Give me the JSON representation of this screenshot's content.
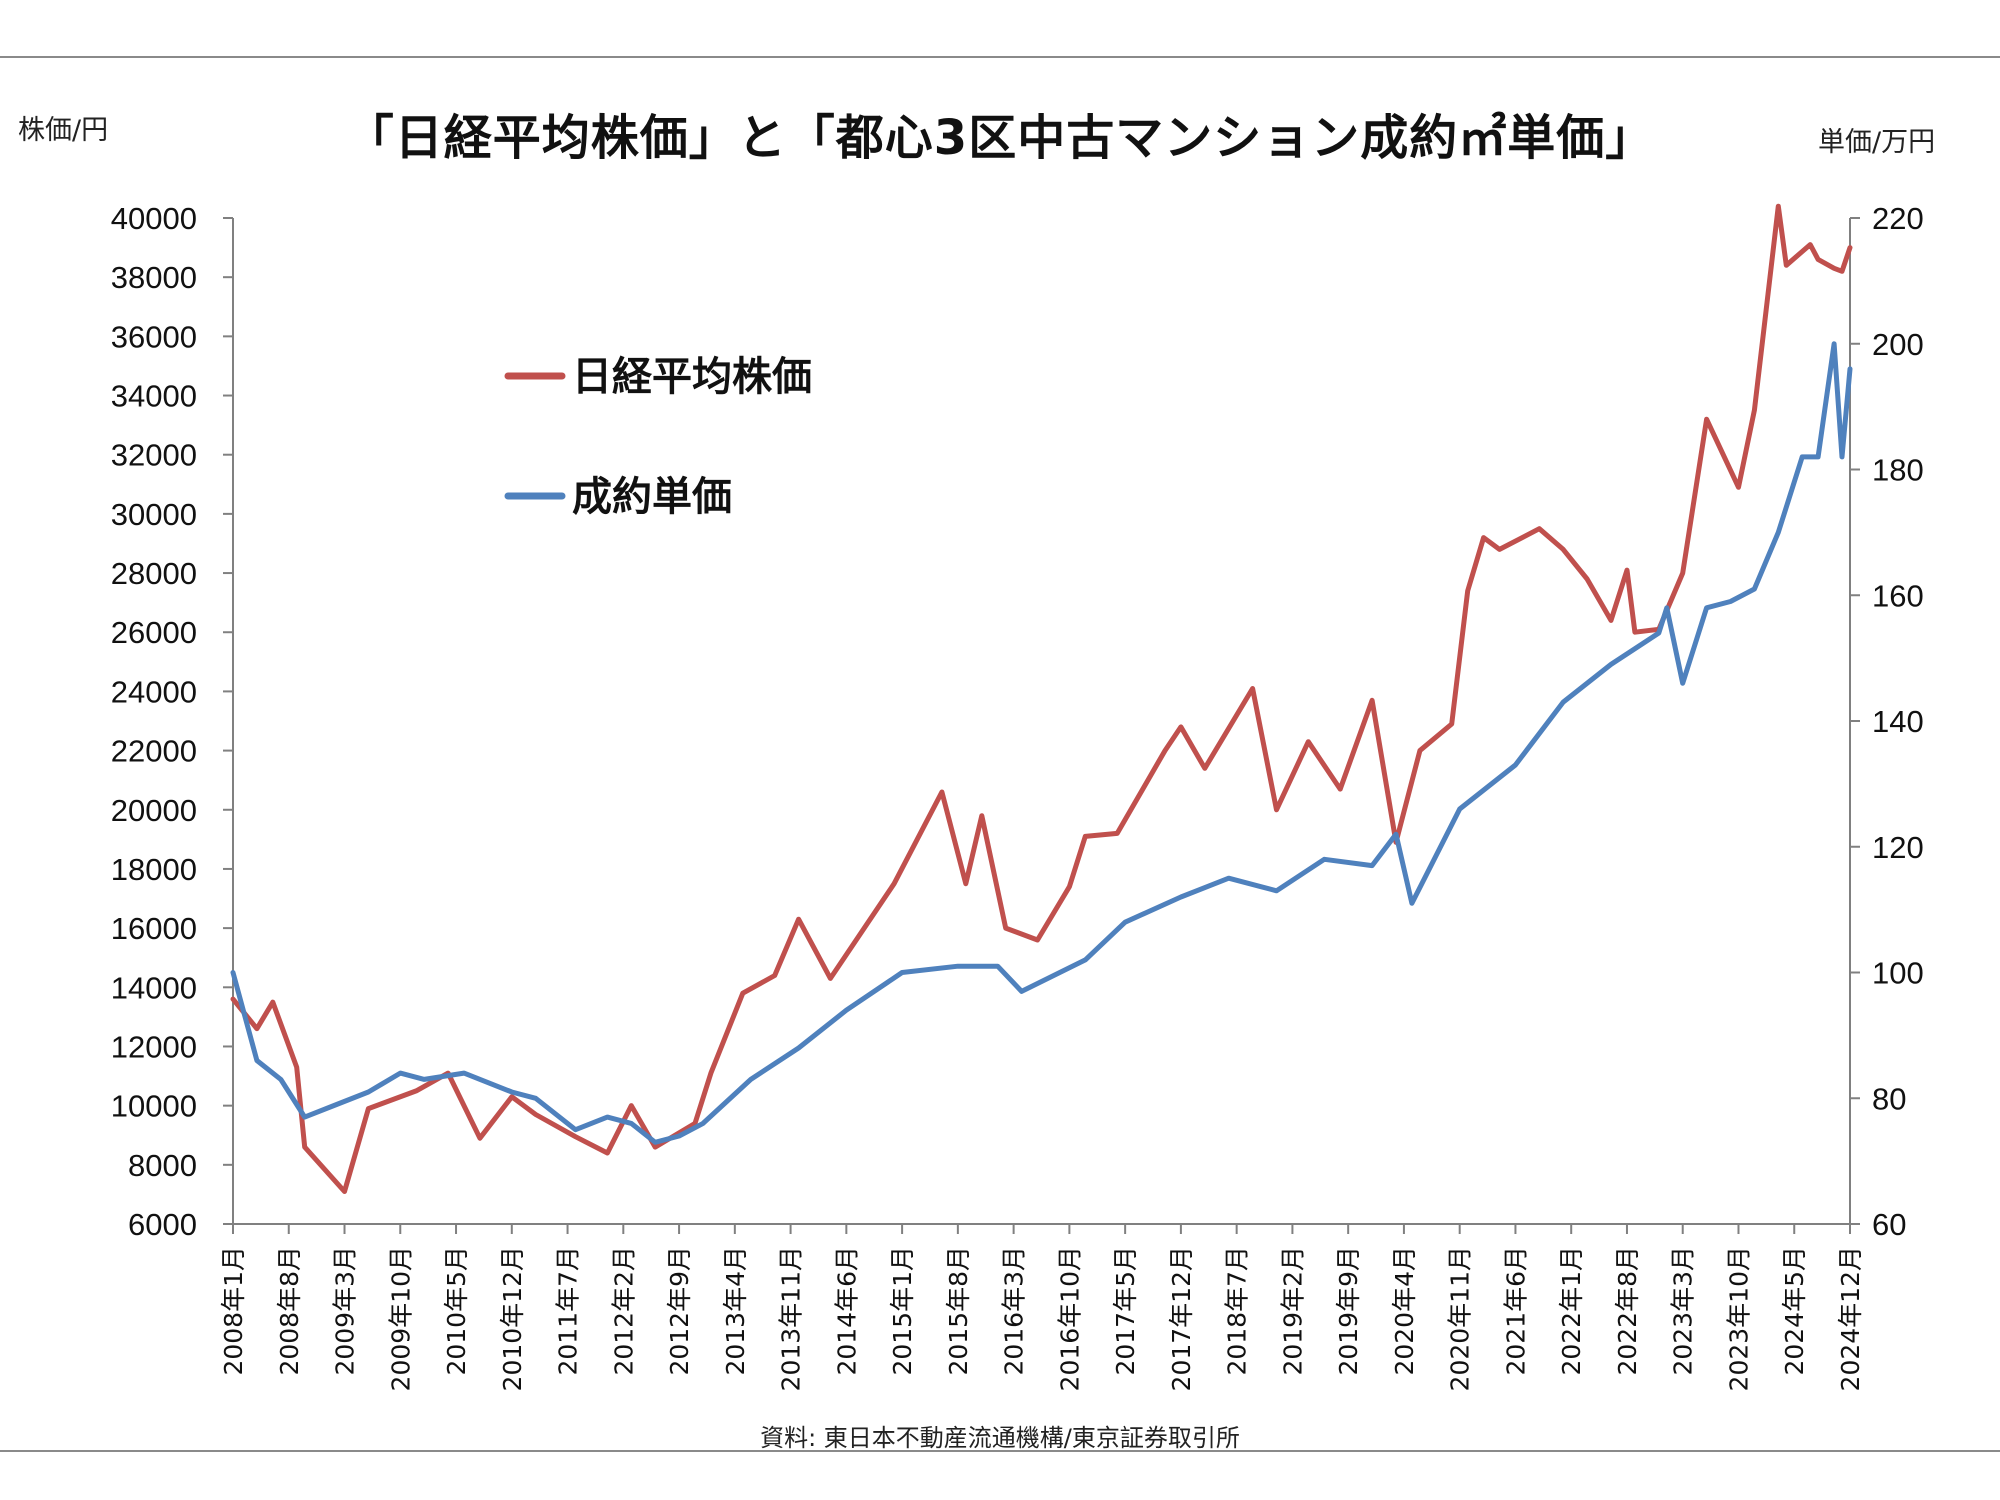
{
  "title": "「日経平均株価」と「都心3区中古マンション成約㎡単価」",
  "left_unit": "株価/円",
  "right_unit": "単価/万円",
  "source": "資料: 東日本不動産流通機構/東京証券取引所",
  "colors": {
    "nikkei": "#c0504d",
    "price": "#4f81bd"
  },
  "chart_data": {
    "type": "line",
    "title": "「日経平均株価」と「都心3区中古マンション成約㎡単価」",
    "ylabel_left": "株価/円",
    "ylabel_right": "単価/万円",
    "ylim_left": [
      6000,
      40000
    ],
    "ylim_right": [
      60,
      220
    ],
    "left_ticks": [
      6000,
      8000,
      10000,
      12000,
      14000,
      16000,
      18000,
      20000,
      22000,
      24000,
      26000,
      28000,
      30000,
      32000,
      34000,
      36000,
      38000,
      40000
    ],
    "right_ticks": [
      60,
      80,
      100,
      120,
      140,
      160,
      180,
      200,
      220
    ],
    "x_tick_labels": [
      "2008年1月",
      "2008年8月",
      "2009年3月",
      "2009年10月",
      "2010年5月",
      "2010年12月",
      "2011年7月",
      "2012年2月",
      "2012年9月",
      "2013年4月",
      "2013年11月",
      "2014年6月",
      "2015年1月",
      "2015年8月",
      "2016年3月",
      "2016年10月",
      "2017年5月",
      "2017年12月",
      "2018年7月",
      "2019年2月",
      "2019年9月",
      "2020年4月",
      "2020年11月",
      "2021年6月",
      "2022年1月",
      "2022年8月",
      "2023年3月",
      "2023年10月",
      "2024年5月",
      "2024年12月"
    ],
    "legend": {
      "placement": "upper-left"
    },
    "grid": false,
    "series": [
      {
        "name": "日経平均株価",
        "axis": "left",
        "x": [
          "2008-01",
          "2008-04",
          "2008-06",
          "2008-09",
          "2008-10",
          "2009-03",
          "2009-06",
          "2009-12",
          "2010-04",
          "2010-08",
          "2010-12",
          "2011-03",
          "2011-08",
          "2011-12",
          "2012-03",
          "2012-06",
          "2012-11",
          "2013-01",
          "2013-05",
          "2013-09",
          "2013-12",
          "2014-04",
          "2014-12",
          "2015-06",
          "2015-09",
          "2015-11",
          "2016-02",
          "2016-06",
          "2016-10",
          "2016-12",
          "2017-04",
          "2017-10",
          "2017-12",
          "2018-03",
          "2018-09",
          "2018-12",
          "2019-04",
          "2019-08",
          "2019-12",
          "2020-03",
          "2020-06",
          "2020-10",
          "2020-12",
          "2021-02",
          "2021-04",
          "2021-09",
          "2021-12",
          "2022-03",
          "2022-06",
          "2022-08",
          "2022-09",
          "2022-12",
          "2023-03",
          "2023-06",
          "2023-10",
          "2023-12",
          "2024-03",
          "2024-04",
          "2024-07",
          "2024-08",
          "2024-10",
          "2024-11",
          "2024-12"
        ],
        "values": [
          13600,
          12600,
          13500,
          11300,
          8600,
          7100,
          9900,
          10500,
          11100,
          8900,
          10300,
          9700,
          8950,
          8400,
          10000,
          8600,
          9400,
          11100,
          13800,
          14400,
          16300,
          14300,
          17500,
          20600,
          17500,
          19800,
          16000,
          15600,
          17400,
          19100,
          19200,
          22000,
          22800,
          21400,
          24100,
          20000,
          22300,
          20700,
          23700,
          18900,
          22000,
          22900,
          27400,
          29200,
          28800,
          29500,
          28800,
          27800,
          26400,
          28100,
          26000,
          26100,
          28000,
          33200,
          30900,
          33500,
          40400,
          38400,
          39100,
          38600,
          38300,
          38200,
          39000
        ]
      },
      {
        "name": "成約単価",
        "axis": "right",
        "x": [
          "2008-01",
          "2008-04",
          "2008-07",
          "2008-10",
          "2009-02",
          "2009-06",
          "2009-10",
          "2010-01",
          "2010-06",
          "2010-12",
          "2011-03",
          "2011-08",
          "2011-12",
          "2012-03",
          "2012-06",
          "2012-09",
          "2012-12",
          "2013-06",
          "2013-12",
          "2014-06",
          "2015-01",
          "2015-08",
          "2016-01",
          "2016-04",
          "2016-12",
          "2017-05",
          "2017-12",
          "2018-06",
          "2018-12",
          "2019-06",
          "2019-12",
          "2020-03",
          "2020-05",
          "2020-11",
          "2021-06",
          "2021-12",
          "2022-06",
          "2022-12",
          "2023-01",
          "2023-03",
          "2023-06",
          "2023-09",
          "2023-12",
          "2024-03",
          "2024-06",
          "2024-08",
          "2024-10",
          "2024-11",
          "2024-12"
        ],
        "values": [
          100,
          86,
          83,
          77,
          79,
          81,
          84,
          83,
          84,
          81,
          80,
          75,
          77,
          76,
          73,
          74,
          76,
          83,
          88,
          94,
          100,
          101,
          101,
          97,
          102,
          108,
          112,
          115,
          113,
          118,
          117,
          122,
          111,
          126,
          133,
          143,
          149,
          154,
          158,
          146,
          158,
          159,
          161,
          170,
          182,
          182,
          200,
          182,
          196
        ]
      }
    ]
  }
}
